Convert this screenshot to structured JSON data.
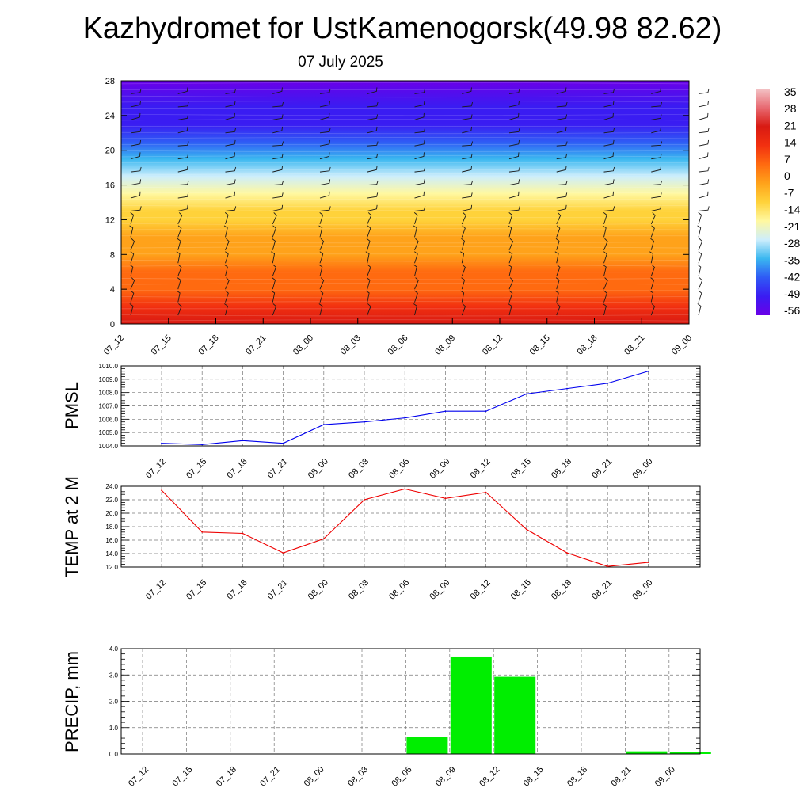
{
  "header": {
    "title": "Kazhydromet for UstKamenogorsk(49.98 82.62)",
    "subtitle": "07 July 2025"
  },
  "chart_data": [
    {
      "type": "heatmap",
      "name": "temperature-height-section",
      "x_labels": [
        "07_12",
        "07_15",
        "07_18",
        "07_21",
        "08_00",
        "08_03",
        "08_06",
        "08_09",
        "08_12",
        "08_15",
        "08_18",
        "08_21",
        "09_00"
      ],
      "y_ticks": [
        0,
        4,
        8,
        12,
        16,
        20,
        24,
        28
      ],
      "ylim": [
        0,
        28
      ],
      "colorbar": {
        "labels": [
          35,
          28,
          21,
          14,
          7,
          0,
          -7,
          -14,
          -21,
          -28,
          -35,
          -42,
          -49,
          -56
        ],
        "range": [
          -63,
          42
        ],
        "colors": [
          "#6a00e8",
          "#3a1cf2",
          "#2f5af5",
          "#3ab7f0",
          "#cdeefc",
          "#fff8a0",
          "#ffd23a",
          "#ffa21a",
          "#ff6a10",
          "#f23010",
          "#d81a12",
          "#e86a72",
          "#f3c3c6"
        ]
      },
      "profile_temperature": [
        [
          0,
          22
        ],
        [
          2,
          18
        ],
        [
          4,
          10
        ],
        [
          6,
          5
        ],
        [
          8,
          1
        ],
        [
          10,
          -3
        ],
        [
          12,
          -8
        ],
        [
          13,
          -14
        ],
        [
          15,
          -22
        ],
        [
          17,
          -30
        ],
        [
          19,
          -38
        ],
        [
          21,
          -45
        ],
        [
          23,
          -52
        ],
        [
          25,
          -58
        ],
        [
          28,
          -62
        ]
      ],
      "wind_barbs": "wind barbs at each time and level"
    },
    {
      "type": "line",
      "ylabel": "PMSL",
      "x": [
        "07_12",
        "07_15",
        "07_18",
        "07_21",
        "08_00",
        "08_03",
        "08_06",
        "08_09",
        "08_12",
        "08_15",
        "08_18",
        "08_21",
        "09_00"
      ],
      "values": [
        1004.2,
        1004.1,
        1004.4,
        1004.2,
        1005.6,
        1005.8,
        1006.1,
        1006.6,
        1006.6,
        1007.9,
        1008.3,
        1008.7,
        1009.6
      ],
      "ylim": [
        1004.0,
        1010.0
      ],
      "y_ticks": [
        "1004.0",
        "1005.0",
        "1006.0",
        "1007.0",
        "1008.0",
        "1009.0",
        "1010.0"
      ],
      "color": "#0000ee"
    },
    {
      "type": "line",
      "ylabel": "TEMP at 2 M",
      "x": [
        "07_12",
        "07_15",
        "07_18",
        "07_21",
        "08_00",
        "08_03",
        "08_06",
        "08_09",
        "08_12",
        "08_15",
        "08_18",
        "08_21",
        "09_00"
      ],
      "values": [
        23.4,
        17.2,
        17.0,
        14.1,
        16.2,
        22.0,
        23.6,
        22.2,
        23.1,
        17.6,
        14.1,
        12.1,
        12.7
      ],
      "ylim": [
        12.0,
        24.0
      ],
      "y_ticks": [
        "12.0",
        "14.0",
        "16.0",
        "18.0",
        "20.0",
        "22.0",
        "24.0"
      ],
      "color": "#ee0000"
    },
    {
      "type": "bar",
      "ylabel": "PRECIP, mm",
      "categories": [
        "07_12",
        "07_15",
        "07_18",
        "07_21",
        "08_00",
        "08_03",
        "08_06",
        "08_09",
        "08_12",
        "08_15",
        "08_18",
        "08_21",
        "09_00"
      ],
      "values": [
        0,
        0,
        0,
        0,
        0,
        0,
        0.65,
        3.7,
        2.93,
        0,
        0,
        0.1,
        0.08
      ],
      "ylim": [
        0,
        4.0
      ],
      "y_ticks": [
        "0.0",
        "1.0",
        "2.0",
        "3.0",
        "4.0"
      ],
      "color": "#00ee00"
    }
  ]
}
